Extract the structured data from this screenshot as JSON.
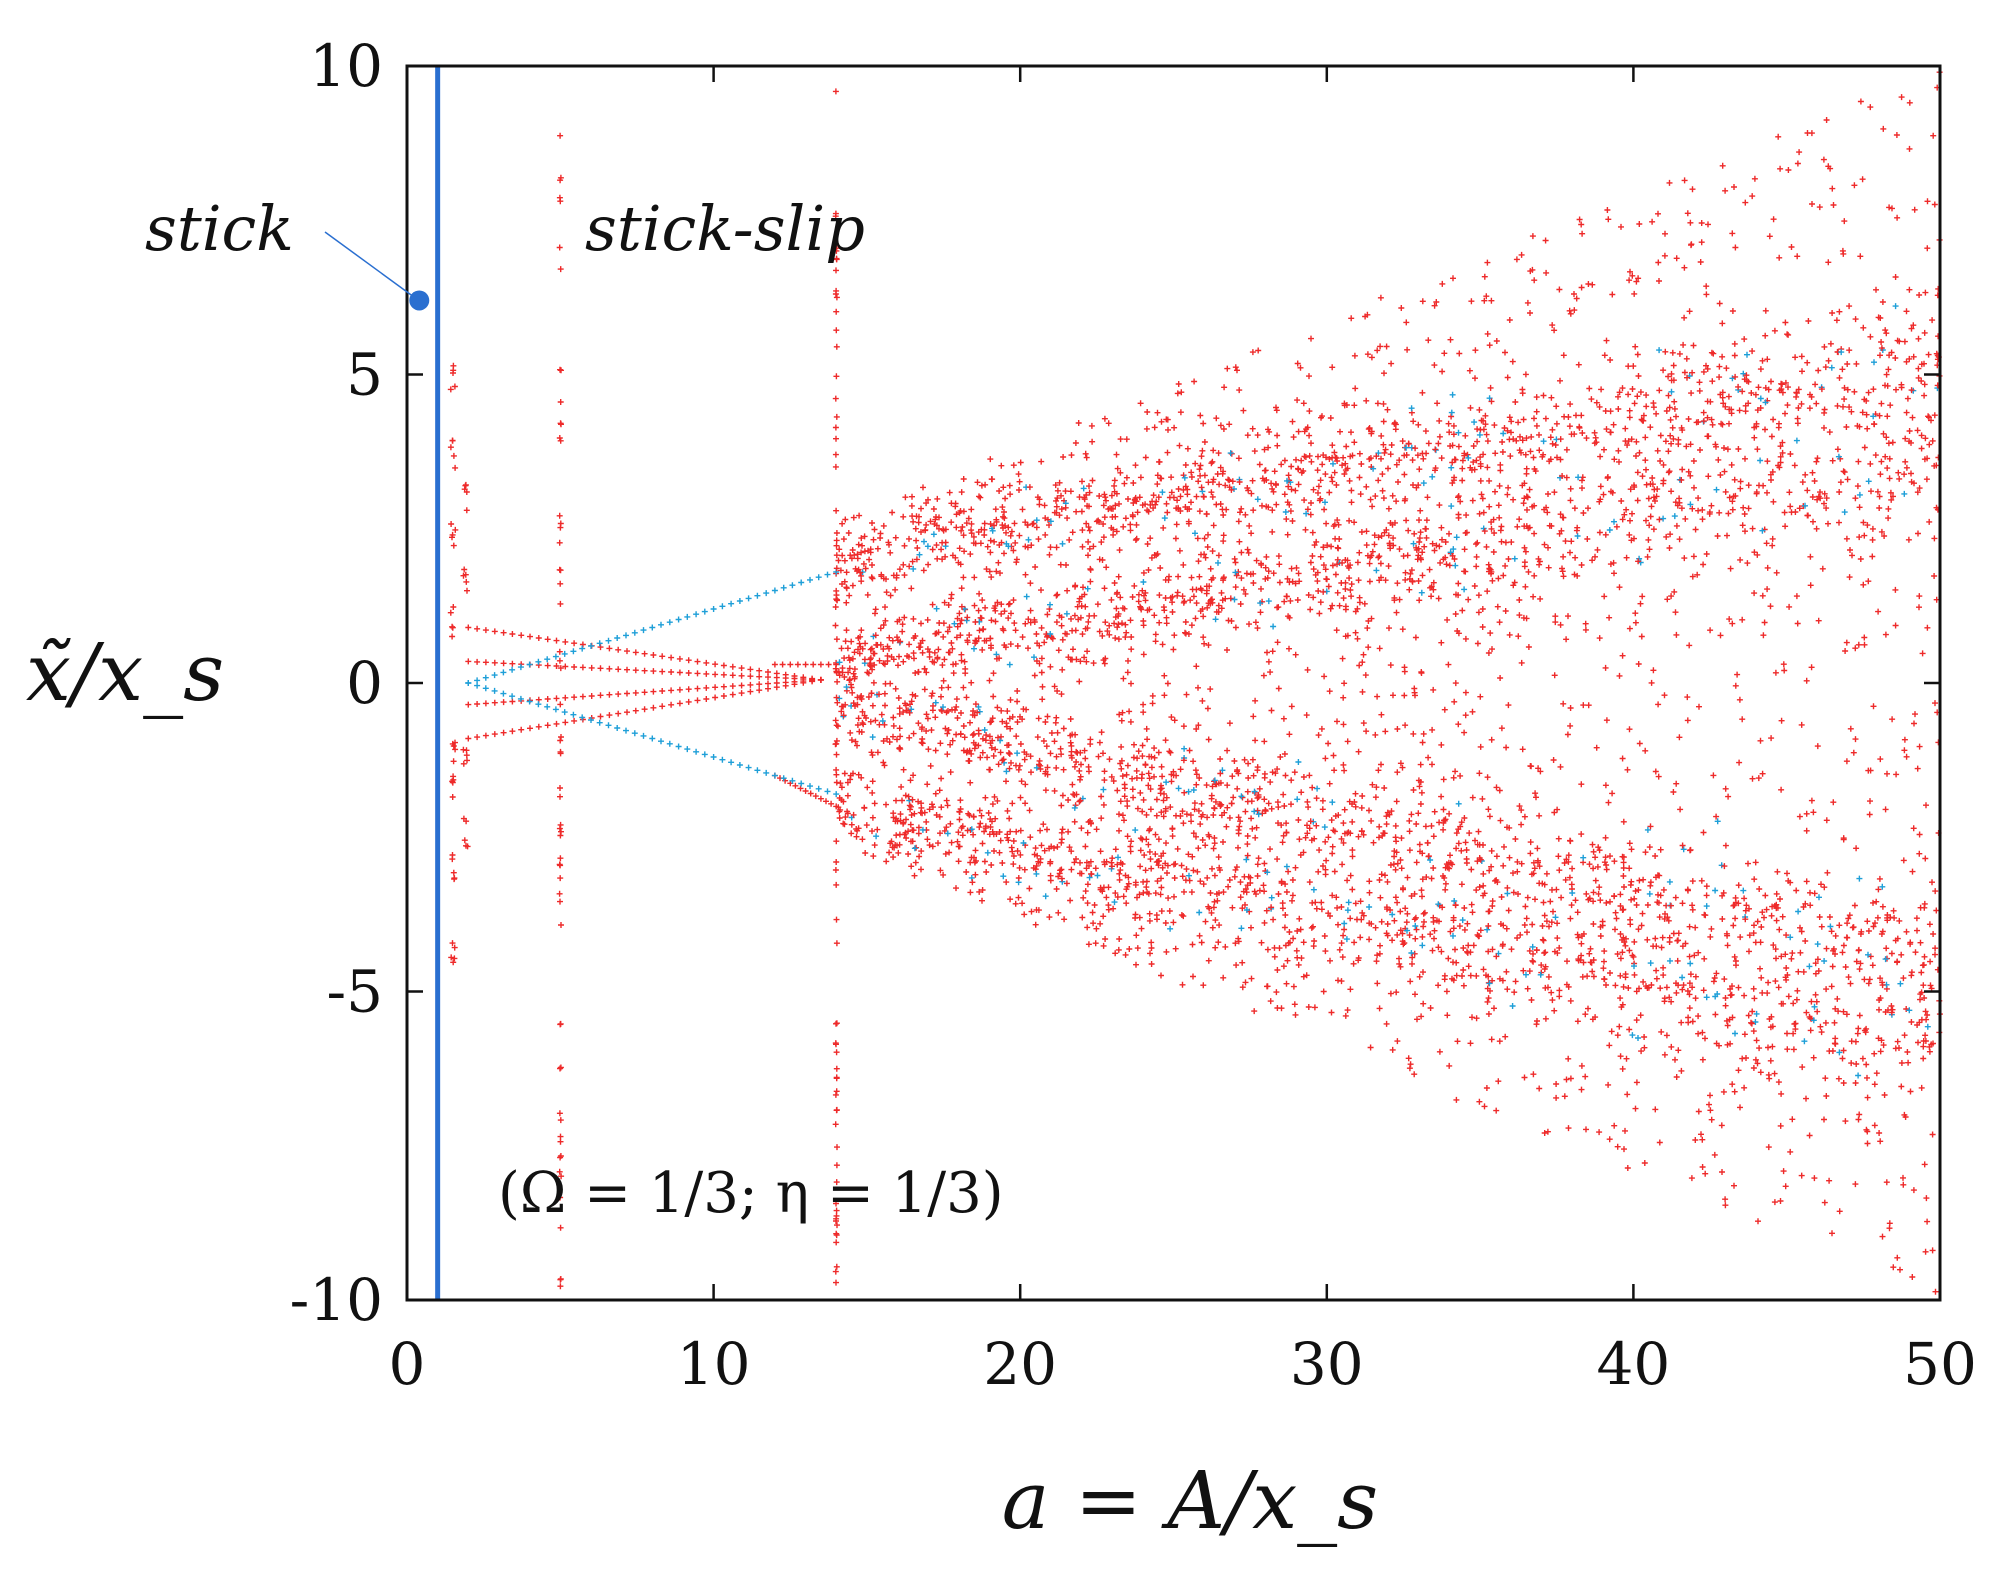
{
  "chart_data": {
    "type": "scatter",
    "title": "",
    "xlabel": "a = A/x_s",
    "ylabel": "x̃/x_s",
    "xlim": [
      0,
      50
    ],
    "ylim": [
      -10,
      10
    ],
    "x_ticks": [
      0,
      10,
      20,
      30,
      40,
      50
    ],
    "y_ticks": [
      -10,
      -5,
      0,
      5,
      10
    ],
    "x_tick_labels": [
      "0",
      "10",
      "20",
      "30",
      "40",
      "50"
    ],
    "y_tick_labels": [
      "-10",
      "-5",
      "0",
      "5",
      "10"
    ],
    "grid": false,
    "colors": {
      "red_points": "#ee2a2a",
      "blue_points": "#1e9fd8",
      "stick": "#2a6fd0"
    },
    "annotations": {
      "stick": "stick",
      "stick_slip": "stick-slip",
      "params": "(Ω = 1/3; η = 1/3)"
    },
    "stick_line": {
      "x": 1.0,
      "y_range": [
        -10,
        10
      ]
    },
    "stick_marker": {
      "x": 0.4,
      "y": 6.2
    },
    "series": [
      {
        "color": "#ee2a2a",
        "description_type": "period-n branches",
        "branches": [
          {
            "x": [
              2,
              13.5
            ],
            "y": [
              0.9,
              0.05
            ]
          },
          {
            "x": [
              2,
              13.5
            ],
            "y": [
              0.35,
              0.05
            ]
          },
          {
            "x": [
              2,
              13.5
            ],
            "y": [
              -0.35,
              0.05
            ]
          },
          {
            "x": [
              2,
              13.5
            ],
            "y": [
              -0.9,
              0.05
            ]
          }
        ]
      },
      {
        "color": "#1e9fd8",
        "description_type": "symmetric branches",
        "branches": [
          {
            "x": [
              2.0,
              14.0
            ],
            "y": [
              0.0,
              1.8
            ]
          },
          {
            "x": [
              2.0,
              14.0
            ],
            "y": [
              0.0,
              -1.8
            ]
          }
        ]
      },
      {
        "color": "#ee2a2a",
        "description_type": "chaotic bands",
        "x_range": [
          14,
          50
        ],
        "band_centers_at_x14": [
          2.0,
          0.3,
          -0.3,
          -2.0
        ],
        "band_centers_at_x50": [
          5.2,
          3.6,
          -4.5,
          -5.8
        ],
        "envelope_at_x14": [
          -2.6,
          2.6
        ],
        "envelope_at_x50": [
          -10,
          10
        ]
      }
    ]
  }
}
